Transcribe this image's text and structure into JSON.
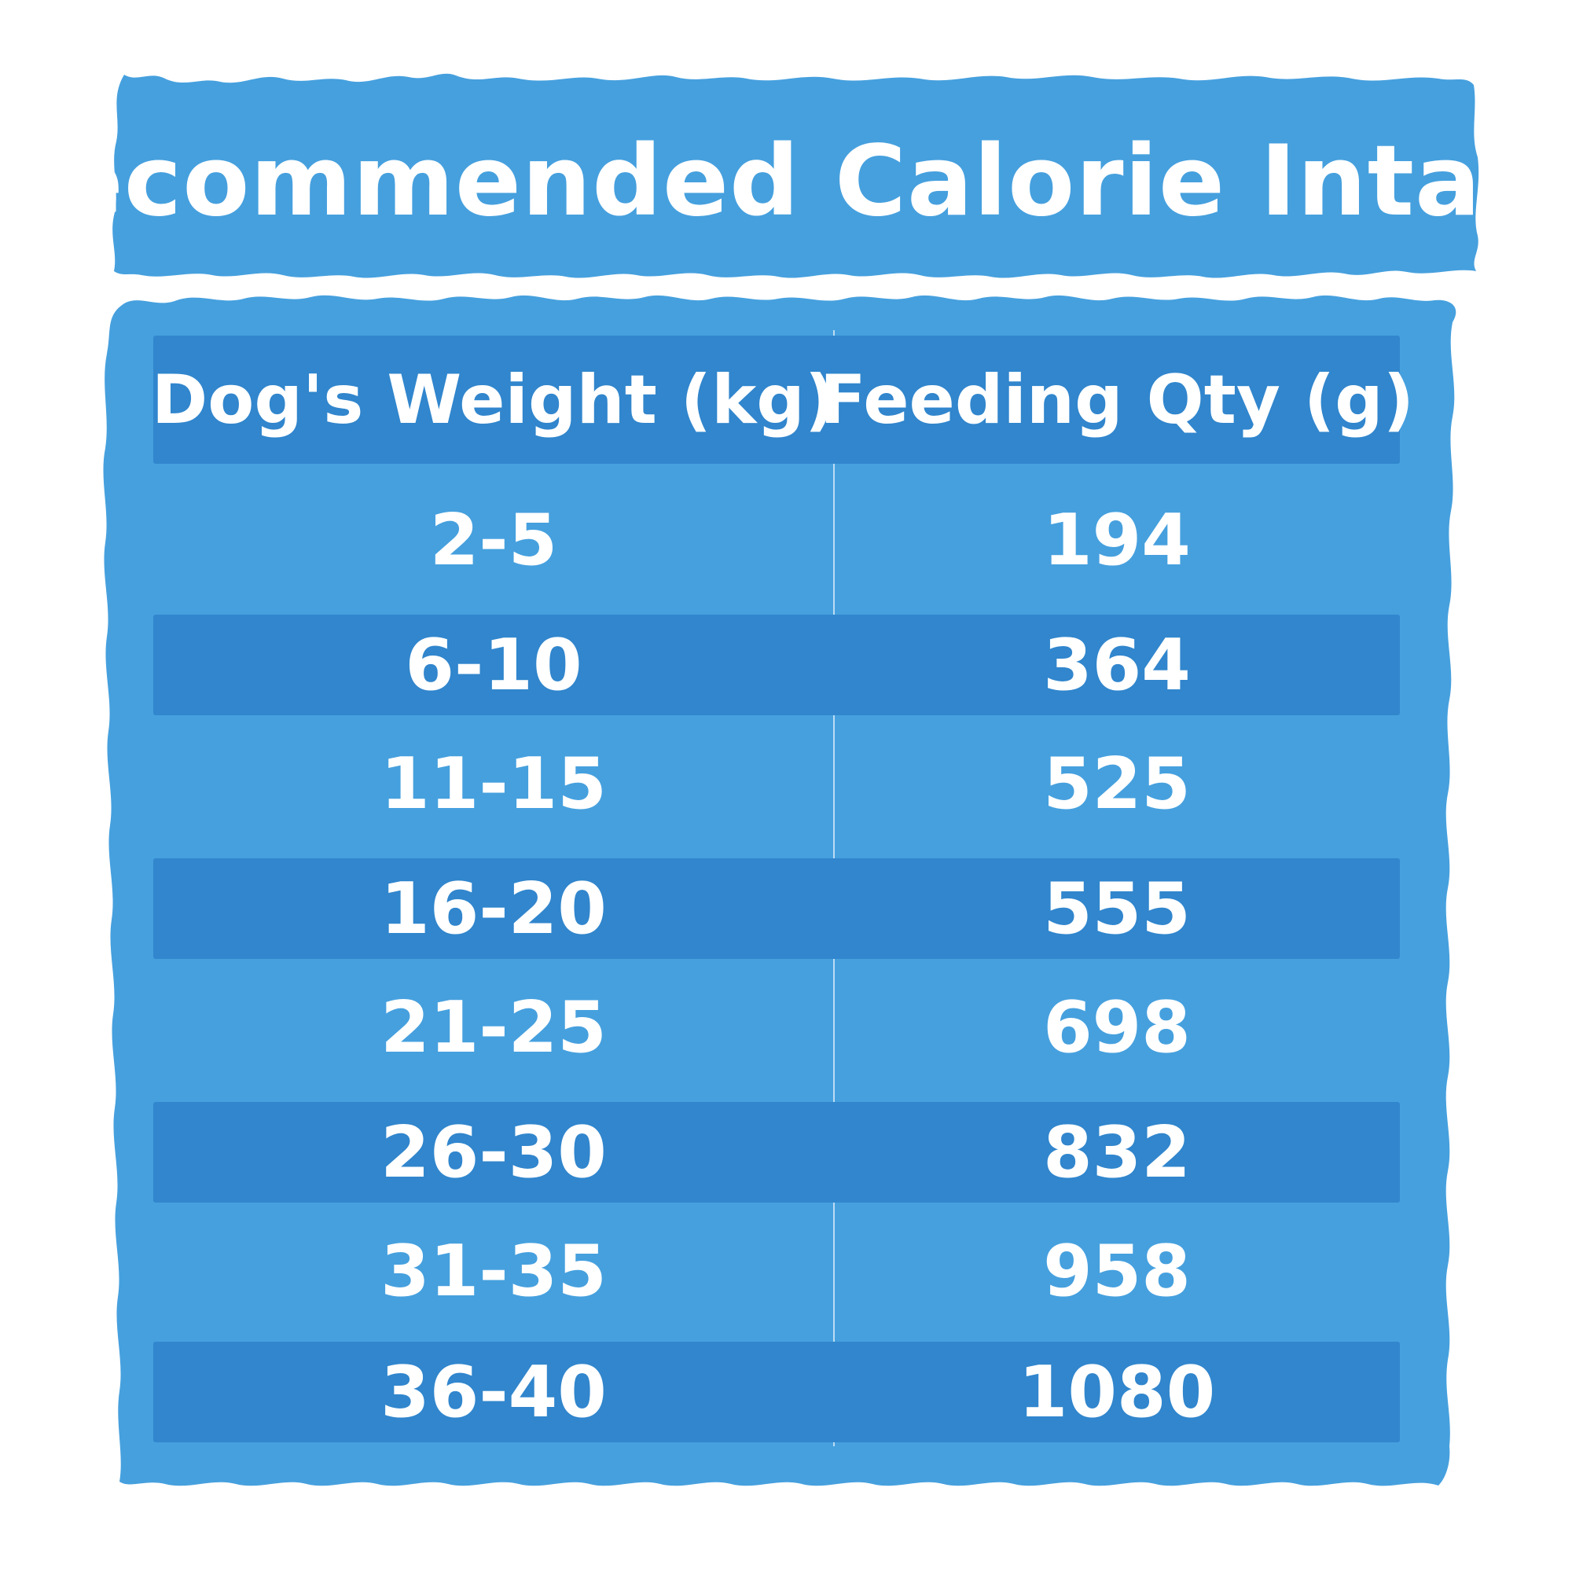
{
  "colors": {
    "panel": "#46a0de",
    "row_stripe": "#3186cd",
    "text": "#ffffff",
    "background": "#ffffff"
  },
  "title": "Recommended Calorie Intake",
  "table": {
    "headers": [
      "Dog's Weight (kg)",
      "Feeding Qty (g)"
    ],
    "rows": [
      [
        "2-5",
        "194"
      ],
      [
        "6-10",
        "364"
      ],
      [
        "11-15",
        "525"
      ],
      [
        "16-20",
        "555"
      ],
      [
        "21-25",
        "698"
      ],
      [
        "26-30",
        "832"
      ],
      [
        "31-35",
        "958"
      ],
      [
        "36-40",
        "1080"
      ]
    ]
  }
}
